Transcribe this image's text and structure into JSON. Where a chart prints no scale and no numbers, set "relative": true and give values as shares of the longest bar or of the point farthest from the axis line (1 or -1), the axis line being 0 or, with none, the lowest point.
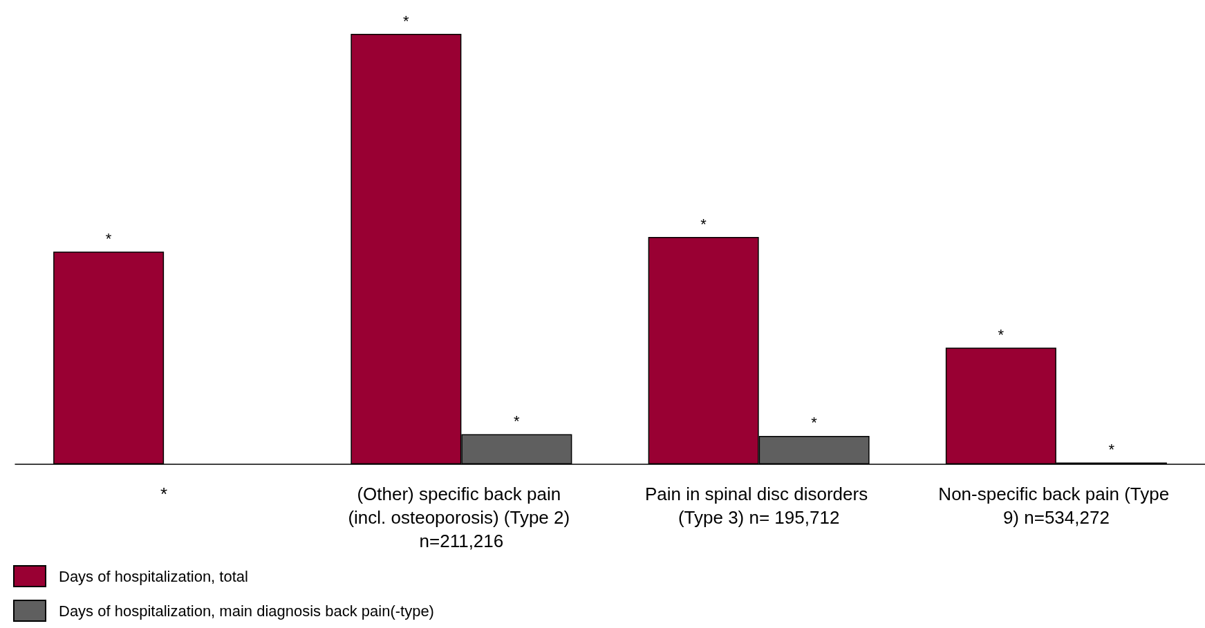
{
  "chart_data": {
    "type": "bar",
    "relative": true,
    "categories": [
      "*",
      "(Other) specific back pain (incl. osteoporosis) (Type 2) n=211,216",
      "Pain in spinal disc disorders (Type 3) n= 195,712",
      "Non-specific back pain (Type 9) n=534,272"
    ],
    "series": [
      {
        "name": "Days of hospitalization, total",
        "color": "#990033",
        "values": [
          0.494,
          1,
          0.528,
          0.271
        ]
      },
      {
        "name": "Days of hospitalization, main diagnosis back pain(-type)",
        "color": "#5f5f5f",
        "values": [
          null,
          0.07,
          0.066,
          0.004
        ]
      }
    ],
    "annotations": [
      "*",
      "*",
      "*",
      "*",
      "*",
      "*",
      "*"
    ],
    "legend": "bottom left"
  }
}
